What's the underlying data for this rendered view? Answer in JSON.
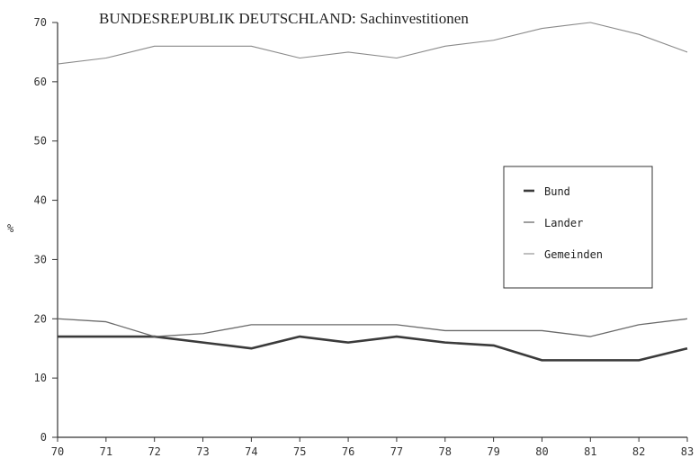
{
  "chart_data": {
    "type": "line",
    "title": "BUNDESREPUBLIK DEUTSCHLAND: Sachinvestitionen",
    "xlabel": "",
    "ylabel": "%",
    "x": [
      "70",
      "71",
      "72",
      "73",
      "74",
      "75",
      "76",
      "77",
      "78",
      "79",
      "80",
      "81",
      "82",
      "83"
    ],
    "ylim": [
      0,
      70
    ],
    "yticks": [
      "0",
      "10",
      "20",
      "30",
      "40",
      "50",
      "60",
      "70"
    ],
    "grid": false,
    "legend_position": "right",
    "series": [
      {
        "name": "Bund",
        "values": [
          17,
          17,
          17,
          16,
          15,
          17,
          16,
          17,
          16,
          15.5,
          13,
          13,
          13,
          15
        ],
        "color": "#3a3a3a"
      },
      {
        "name": "Lander",
        "values": [
          20,
          19.5,
          17,
          17.5,
          19,
          19,
          19,
          19,
          18,
          18,
          18,
          17,
          19,
          20
        ],
        "color": "#6a6a6a"
      },
      {
        "name": "Gemeinden",
        "values": [
          63,
          64,
          66,
          66,
          66,
          64,
          65,
          64,
          66,
          67,
          69,
          70,
          68,
          65
        ],
        "color": "#8a8a8a"
      }
    ]
  }
}
